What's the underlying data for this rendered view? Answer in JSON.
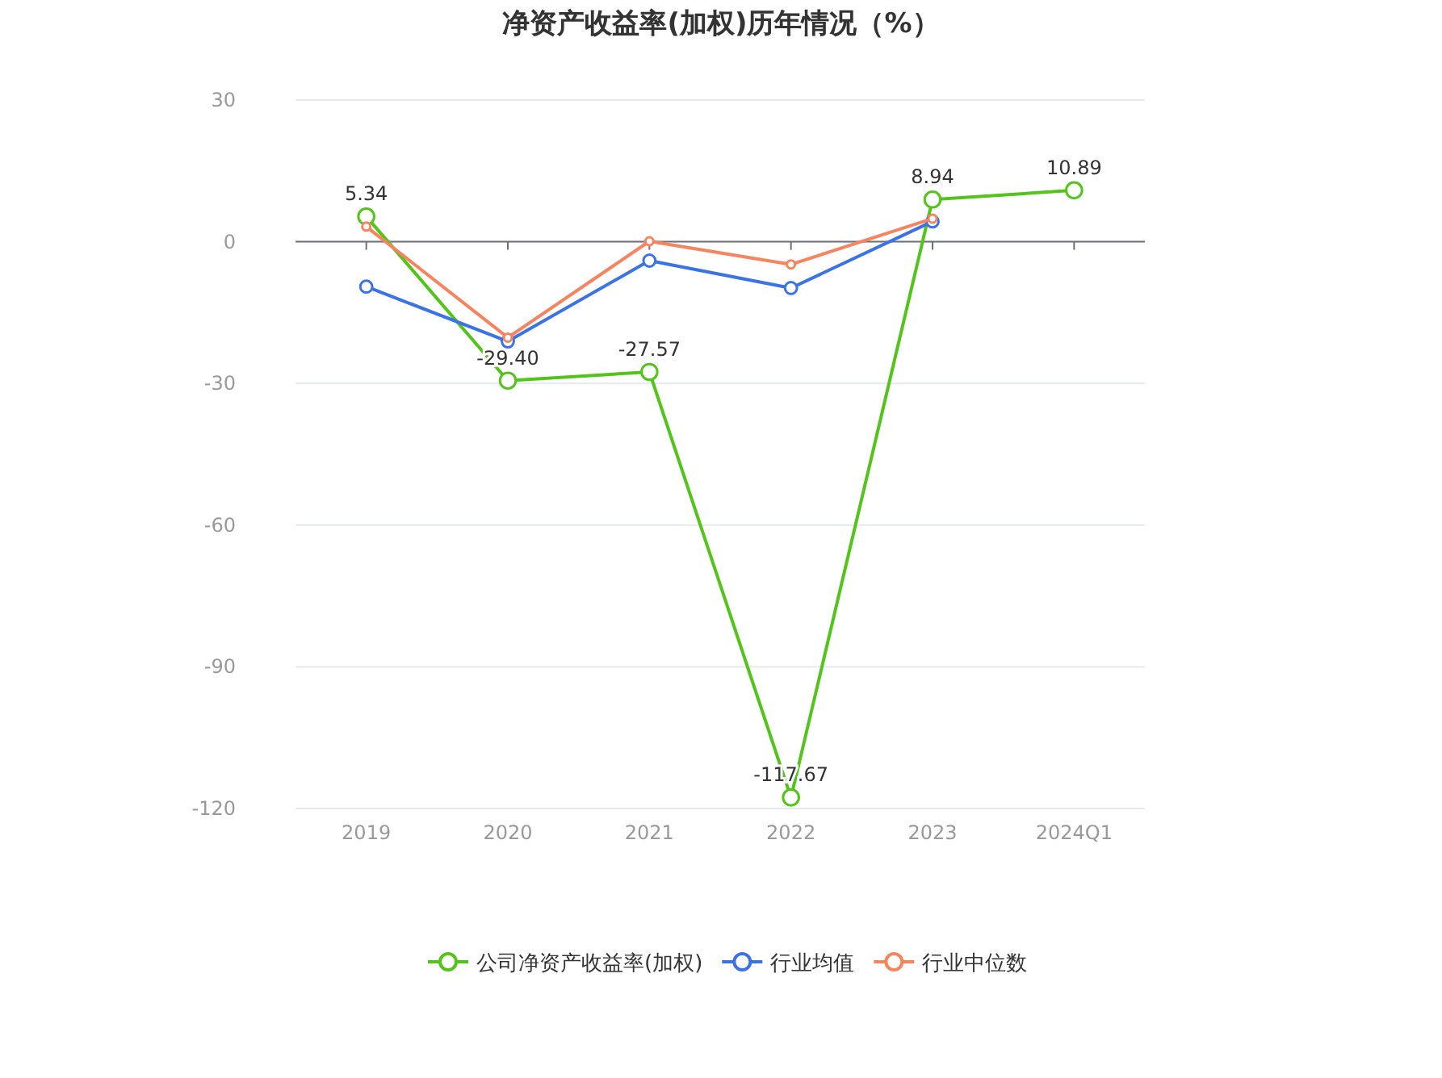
{
  "chart_data": {
    "type": "line",
    "title": "净资产收益率(加权)历年情况（%）",
    "categories": [
      "2019",
      "2020",
      "2021",
      "2022",
      "2023",
      "2024Q1"
    ],
    "series": [
      {
        "name": "公司净资产收益率(加权)",
        "color": "#52c41a",
        "values": [
          5.34,
          -29.4,
          -27.57,
          -117.67,
          8.94,
          10.89
        ],
        "value_labels": [
          "5.34",
          "-29.40",
          "-27.57",
          "-117.67",
          "8.94",
          "10.89"
        ]
      },
      {
        "name": "行业均值",
        "color": "#3a72e8",
        "values": [
          -9.5,
          -21.1,
          -4.0,
          -9.8,
          4.3,
          null
        ]
      },
      {
        "name": "行业中位数",
        "color": "#f7845e",
        "values": [
          3.2,
          -20.3,
          0.1,
          -4.8,
          4.9,
          null
        ]
      }
    ],
    "ylim": [
      -120,
      30
    ],
    "yticks": [
      -120,
      -90,
      -60,
      -30,
      0,
      30
    ],
    "grid": "y",
    "legend": "bottom",
    "marker": "circle",
    "line_style": "solid"
  }
}
